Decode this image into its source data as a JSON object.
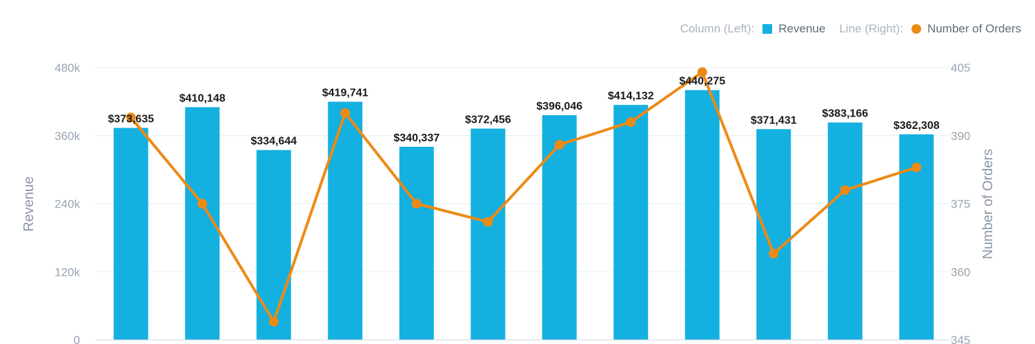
{
  "chart_data": {
    "type": "bar",
    "title": "",
    "categories": [
      "",
      "",
      "",
      "",
      "",
      "",
      "",
      "",
      "",
      "",
      "",
      ""
    ],
    "series": [
      {
        "name": "Revenue",
        "axis": "left",
        "chart": "column",
        "values": [
          373635,
          410148,
          334644,
          419741,
          340337,
          372456,
          396046,
          414132,
          440275,
          371431,
          383166,
          362308
        ],
        "labels": [
          "$373,635",
          "$410,148",
          "$334,644",
          "$419,741",
          "$340,337",
          "$372,456",
          "$396,046",
          "$414,132",
          "$440,275",
          "$371,431",
          "$383,166",
          "$362,308"
        ]
      },
      {
        "name": "Number of Orders",
        "axis": "right",
        "chart": "line",
        "values": [
          394,
          375,
          349,
          395,
          375,
          371,
          388,
          393,
          404,
          364,
          378,
          383
        ]
      }
    ],
    "ylabel": "Revenue",
    "ylabel_right": "Number of Orders",
    "ylim": [
      0,
      480000
    ],
    "ylim_right": [
      345,
      405
    ],
    "yticks": [
      "0",
      "120k",
      "240k",
      "360k",
      "480k"
    ],
    "yticks_right": [
      "345",
      "360",
      "375",
      "390",
      "405"
    ],
    "grid": true,
    "legend_position": "top-right",
    "colors": {
      "bar": "#14b0e0",
      "line": "#ec8a16",
      "grid": "#e7ebef",
      "axis": "#ccd6e1"
    }
  },
  "legend": {
    "column_group_label": "Column (Left):",
    "line_group_label": "Line (Right):",
    "bar_series_label": "Revenue",
    "line_series_label": "Number of Orders"
  }
}
